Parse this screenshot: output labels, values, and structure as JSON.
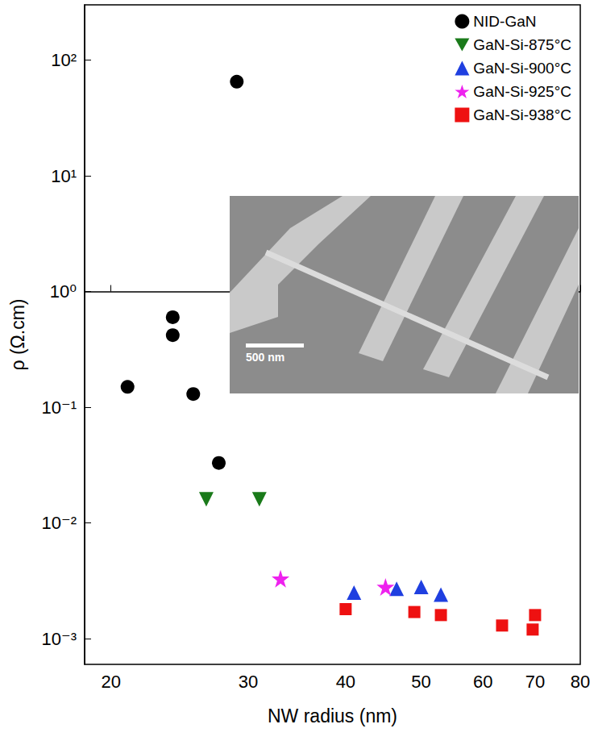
{
  "chart_data": {
    "type": "scatter",
    "x_label": "NW radius (nm)",
    "y_label": "ρ (Ω.cm)",
    "log": true,
    "grid": false,
    "legend": "top-right",
    "xlim": [
      18.5,
      80
    ],
    "xticks": [
      20,
      30,
      40,
      50,
      60,
      70,
      80
    ],
    "ylim": [
      0.0006,
      300
    ],
    "yticks": [
      {
        "value": 0.001,
        "label": "10⁻³"
      },
      {
        "value": 0.01,
        "label": "10⁻²"
      },
      {
        "value": 0.1,
        "label": "10⁻¹"
      },
      {
        "value": 1,
        "label": "10⁰"
      },
      {
        "value": 10,
        "label": "10¹"
      },
      {
        "value": 100,
        "label": "10²"
      }
    ],
    "series": [
      {
        "name": "NID-GaN",
        "color": "#000000",
        "marker": "circle",
        "x": [
          21,
          24,
          24,
          25.5,
          27.5,
          29
        ],
        "values": [
          0.15,
          0.6,
          0.42,
          0.13,
          0.033,
          65
        ]
      },
      {
        "name": "GaN-Si-875°C",
        "color": "#1a7a1a",
        "marker": "triangle_down",
        "x": [
          26.5,
          31
        ],
        "values": [
          0.016,
          0.016
        ]
      },
      {
        "name": "GaN-Si-900°C",
        "color": "#1f3fe0",
        "marker": "triangle",
        "x": [
          41,
          46.5,
          50,
          53
        ],
        "values": [
          0.0025,
          0.0027,
          0.0028,
          0.0024
        ]
      },
      {
        "name": "GaN-Si-925°C",
        "color": "#ee22ee",
        "marker": "star",
        "x": [
          33,
          45
        ],
        "values": [
          0.0033,
          0.0028
        ]
      },
      {
        "name": "GaN-Si-938°C",
        "color": "#ee1111",
        "marker": "square",
        "x": [
          40,
          49,
          53,
          63.5,
          69.5,
          70
        ],
        "values": [
          0.0018,
          0.0017,
          0.0016,
          0.0013,
          0.0012,
          0.0016
        ]
      }
    ],
    "annotations": [
      {
        "text": "500 nm"
      }
    ]
  }
}
